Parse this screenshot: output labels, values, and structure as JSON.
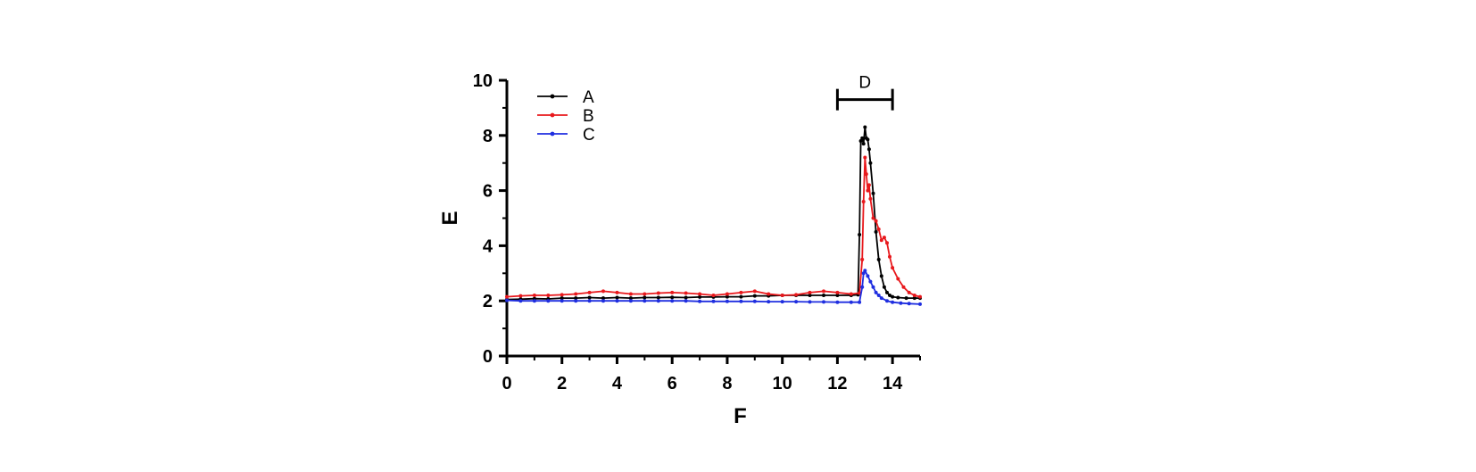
{
  "chart_data": {
    "type": "line",
    "xlabel": "F",
    "ylabel": "E",
    "xlim": [
      0,
      15
    ],
    "ylim": [
      0,
      10
    ],
    "xticks": [
      0,
      2,
      4,
      6,
      8,
      10,
      12,
      14
    ],
    "yticks": [
      0,
      2,
      4,
      6,
      8,
      10
    ],
    "grid": false,
    "legend_position": "top-left",
    "annotation": {
      "label": "D",
      "x_start": 12,
      "x_end": 14,
      "y": 9.3
    },
    "series": [
      {
        "name": "A",
        "color": "#000000",
        "x": [
          0,
          0.5,
          1,
          1.5,
          2,
          2.5,
          3,
          3.5,
          4,
          4.5,
          5,
          5.5,
          6,
          6.5,
          7,
          7.5,
          8,
          8.5,
          9,
          9.5,
          10,
          10.5,
          11,
          11.5,
          12,
          12.5,
          12.75,
          12.8,
          12.85,
          12.9,
          12.95,
          13.0,
          13.05,
          13.1,
          13.15,
          13.2,
          13.3,
          13.4,
          13.5,
          13.6,
          13.7,
          13.8,
          13.9,
          14.0,
          14.2,
          14.5,
          14.8,
          15
        ],
        "y": [
          2.05,
          2.06,
          2.08,
          2.07,
          2.1,
          2.1,
          2.12,
          2.1,
          2.12,
          2.1,
          2.12,
          2.12,
          2.13,
          2.12,
          2.14,
          2.14,
          2.15,
          2.15,
          2.18,
          2.18,
          2.2,
          2.2,
          2.2,
          2.2,
          2.2,
          2.2,
          2.22,
          4.4,
          7.8,
          7.9,
          7.7,
          8.3,
          7.9,
          7.85,
          7.5,
          7.0,
          5.9,
          4.5,
          3.5,
          2.9,
          2.5,
          2.3,
          2.2,
          2.15,
          2.12,
          2.1,
          2.1,
          2.1
        ]
      },
      {
        "name": "B",
        "color": "#e8181c",
        "x": [
          0,
          0.5,
          1,
          1.5,
          2,
          2.5,
          3,
          3.5,
          4,
          4.5,
          5,
          5.5,
          6,
          6.5,
          7,
          7.5,
          8,
          8.5,
          9,
          9.5,
          10,
          10.5,
          11,
          11.5,
          12,
          12.5,
          12.8,
          12.9,
          12.95,
          13.0,
          13.05,
          13.1,
          13.15,
          13.2,
          13.3,
          13.4,
          13.5,
          13.6,
          13.7,
          13.8,
          13.9,
          14.0,
          14.2,
          14.4,
          14.6,
          14.8,
          15
        ],
        "y": [
          2.15,
          2.18,
          2.2,
          2.2,
          2.22,
          2.25,
          2.3,
          2.35,
          2.3,
          2.25,
          2.25,
          2.28,
          2.3,
          2.28,
          2.25,
          2.2,
          2.25,
          2.3,
          2.35,
          2.25,
          2.2,
          2.22,
          2.3,
          2.35,
          2.3,
          2.25,
          2.28,
          3.5,
          5.6,
          7.2,
          6.6,
          6.0,
          6.2,
          5.7,
          5.0,
          4.9,
          4.6,
          4.2,
          4.3,
          4.1,
          3.6,
          3.2,
          2.8,
          2.5,
          2.3,
          2.2,
          2.15
        ]
      },
      {
        "name": "C",
        "color": "#1f2ee0",
        "x": [
          0,
          0.5,
          1,
          1.5,
          2,
          2.5,
          3,
          3.5,
          4,
          4.5,
          5,
          5.5,
          6,
          6.5,
          7,
          7.5,
          8,
          8.5,
          9,
          9.5,
          10,
          10.5,
          11,
          11.5,
          12,
          12.5,
          12.8,
          12.9,
          12.95,
          13.0,
          13.1,
          13.2,
          13.3,
          13.4,
          13.5,
          13.6,
          13.8,
          14.0,
          14.3,
          14.6,
          15
        ],
        "y": [
          2.02,
          2.0,
          2.0,
          2.0,
          2.0,
          2.0,
          2.0,
          2.0,
          2.0,
          2.0,
          2.0,
          2.0,
          2.0,
          2.0,
          1.98,
          1.98,
          1.98,
          1.98,
          1.98,
          1.97,
          1.97,
          1.97,
          1.96,
          1.96,
          1.95,
          1.95,
          1.95,
          2.5,
          3.0,
          3.1,
          2.9,
          2.7,
          2.5,
          2.3,
          2.2,
          2.1,
          2.0,
          1.95,
          1.92,
          1.9,
          1.88
        ]
      }
    ]
  }
}
